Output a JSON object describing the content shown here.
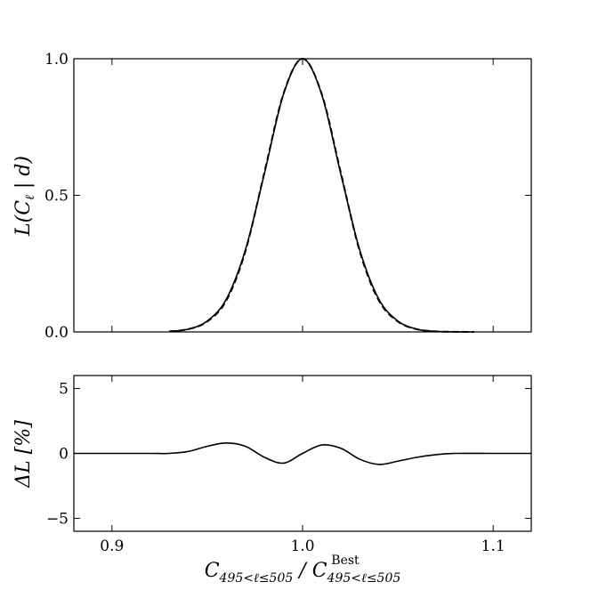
{
  "chart_data": [
    {
      "type": "line",
      "panel": "top",
      "ylabel": "L(C_ℓ | d)",
      "xlim": [
        0.88,
        1.12
      ],
      "ylim": [
        0.0,
        1.0
      ],
      "xticks": [
        0.9,
        1.0,
        1.1
      ],
      "yticks": [
        0.0,
        0.5,
        1.0
      ],
      "yticklabels": [
        "0.0",
        "0.5",
        "1.0"
      ],
      "series": [
        {
          "style": "solid",
          "color": "#000000",
          "x": [
            0.93,
            0.94,
            0.95,
            0.96,
            0.97,
            0.98,
            0.99,
            1.0,
            1.01,
            1.02,
            1.03,
            1.04,
            1.05,
            1.06,
            1.07,
            1.08,
            1.09
          ],
          "y": [
            0.002,
            0.01,
            0.04,
            0.12,
            0.3,
            0.58,
            0.87,
            1.0,
            0.87,
            0.58,
            0.3,
            0.12,
            0.04,
            0.01,
            0.002,
            0.0005,
            0.0
          ]
        },
        {
          "style": "dashed",
          "color": "#000000",
          "x": [
            0.93,
            0.94,
            0.95,
            0.96,
            0.97,
            0.98,
            0.99,
            1.0,
            1.01,
            1.02,
            1.03,
            1.04,
            1.05,
            1.06,
            1.07,
            1.08,
            1.09
          ],
          "y": [
            0.002,
            0.01,
            0.038,
            0.115,
            0.295,
            0.585,
            0.872,
            1.0,
            0.872,
            0.585,
            0.295,
            0.115,
            0.038,
            0.01,
            0.002,
            0.0005,
            0.0
          ]
        }
      ]
    },
    {
      "type": "line",
      "panel": "bottom",
      "ylabel": "ΔL [%]",
      "xlabel": "C_{495<ℓ≤505} / C^{Best}_{495<ℓ≤505}",
      "xlim": [
        0.88,
        1.12
      ],
      "ylim": [
        -6.0,
        6.0
      ],
      "xticks": [
        0.9,
        1.0,
        1.1
      ],
      "xticklabels": [
        "0.9",
        "1.0",
        "1.1"
      ],
      "yticks": [
        -5,
        0,
        5
      ],
      "yticklabels": [
        "−5",
        "0",
        "5"
      ],
      "series": [
        {
          "style": "solid",
          "color": "#000000",
          "x": [
            0.88,
            0.9,
            0.92,
            0.93,
            0.94,
            0.95,
            0.96,
            0.97,
            0.98,
            0.99,
            1.0,
            1.01,
            1.02,
            1.03,
            1.04,
            1.05,
            1.06,
            1.07,
            1.08,
            1.1,
            1.12
          ],
          "y": [
            0.0,
            0.0,
            0.0,
            0.0,
            0.15,
            0.55,
            0.8,
            0.55,
            -0.3,
            -0.75,
            0.0,
            0.65,
            0.4,
            -0.45,
            -0.85,
            -0.6,
            -0.3,
            -0.1,
            0.0,
            0.0,
            0.0
          ]
        }
      ]
    }
  ]
}
